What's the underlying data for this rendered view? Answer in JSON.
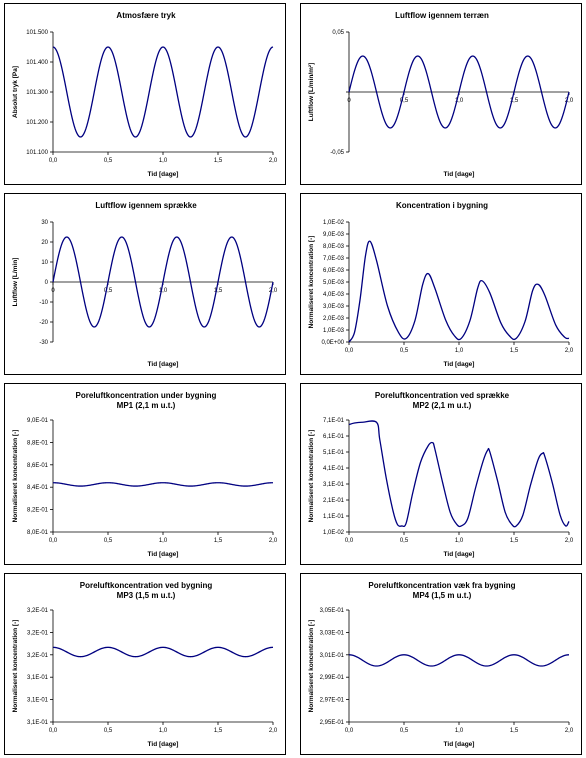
{
  "colors": {
    "series": "#000080",
    "axis": "#000000",
    "background": "#ffffff"
  },
  "chart_data": [
    {
      "type": "line",
      "title": "Atmosfære tryk",
      "subtitle": "",
      "xlabel": "Tid [dage]",
      "ylabel": "Absolut tryk [Pa]",
      "xlim": [
        0,
        2
      ],
      "ylim": [
        101100,
        101500
      ],
      "xticks": [
        "0,0",
        "0,5",
        "1,0",
        "1,5",
        "2,0"
      ],
      "yticks": [
        "101.100",
        "101.200",
        "101.300",
        "101.400",
        "101.500"
      ],
      "x_at": "bottom",
      "series": [
        {
          "shape": "sine",
          "baseline": 101300,
          "amplitude": 150,
          "period": 0.5,
          "phase": 0
        }
      ]
    },
    {
      "type": "line",
      "title": "Luftflow igennem terræn",
      "subtitle": "",
      "xlabel": "Tid [dage]",
      "ylabel": "Luftflow [L/min/m²]",
      "xlim": [
        0,
        2
      ],
      "ylim": [
        -0.05,
        0.05
      ],
      "xticks": [
        "0",
        "0,5",
        "1,0",
        "1,5",
        "2,0"
      ],
      "yticks": [
        "-0,05",
        "",
        "0,05"
      ],
      "x_at": "zero",
      "series": [
        {
          "shape": "sine",
          "baseline": 0,
          "amplitude": 0.03,
          "period": 0.5,
          "phase": 0.125
        }
      ]
    },
    {
      "type": "line",
      "title": "Luftflow igennem sprække",
      "subtitle": "",
      "xlabel": "Tid [dage]",
      "ylabel": "Luftflow [L/min]",
      "xlim": [
        0,
        2
      ],
      "ylim": [
        -30,
        30
      ],
      "xticks": [
        "0",
        "0,5",
        "1,0",
        "1,5",
        "2,0"
      ],
      "yticks": [
        "-30",
        "-20",
        "-10",
        "0",
        "10",
        "20",
        "30"
      ],
      "x_at": "zero",
      "series": [
        {
          "shape": "sine",
          "baseline": 0,
          "amplitude": 22.5,
          "period": 0.5,
          "phase": 0.125
        }
      ]
    },
    {
      "type": "line",
      "title": "Koncentration i bygning",
      "subtitle": "",
      "xlabel": "Tid [dage]",
      "ylabel": "Normaliseret koncentration [-]",
      "xlim": [
        0,
        2
      ],
      "ylim": [
        0,
        0.01
      ],
      "xticks": [
        "0,0",
        "0,5",
        "1,0",
        "1,5",
        "2,0"
      ],
      "yticks": [
        "0,0E+00",
        "1,0E-03",
        "2,0E-03",
        "3,0E-03",
        "4,0E-03",
        "5,0E-03",
        "6,0E-03",
        "7,0E-03",
        "8,0E-03",
        "9,0E-03",
        "1,0E-02"
      ],
      "x_at": "bottom",
      "series": [
        {
          "shape": "points",
          "x": [
            0.0,
            0.05,
            0.1,
            0.15,
            0.19,
            0.25,
            0.35,
            0.45,
            0.52,
            0.6,
            0.67,
            0.72,
            0.78,
            0.88,
            0.96,
            1.02,
            1.1,
            1.17,
            1.21,
            1.28,
            1.38,
            1.46,
            1.52,
            1.6,
            1.67,
            1.72,
            1.78,
            1.88,
            1.96,
            2.0
          ],
          "y": [
            0.0,
            0.0008,
            0.0035,
            0.0072,
            0.0084,
            0.0068,
            0.003,
            0.0008,
            0.0003,
            0.0018,
            0.0048,
            0.0057,
            0.0045,
            0.0018,
            0.0005,
            0.0003,
            0.0018,
            0.0045,
            0.0051,
            0.0041,
            0.0016,
            0.0005,
            0.0003,
            0.0017,
            0.0043,
            0.0048,
            0.0039,
            0.0014,
            0.0004,
            0.0003
          ]
        }
      ]
    },
    {
      "type": "line",
      "title": "Poreluftkoncentration under bygning",
      "subtitle": "MP1 (2,1 m u.t.)",
      "xlabel": "Tid [dage]",
      "ylabel": "Normaliseret koncentration [-]",
      "xlim": [
        0,
        2
      ],
      "ylim": [
        0.8,
        0.9
      ],
      "xticks": [
        "0,0",
        "0,5",
        "1,0",
        "1,5",
        "2,0"
      ],
      "yticks": [
        "8,0E-01",
        "8,2E-01",
        "8,4E-01",
        "8,6E-01",
        "8,8E-01",
        "9,0E-01"
      ],
      "x_at": "bottom",
      "series": [
        {
          "shape": "sine",
          "baseline": 0.8425,
          "amplitude": 0.0015,
          "period": 0.5,
          "phase": 0.0
        }
      ]
    },
    {
      "type": "line",
      "title": "Poreluftkoncentration ved sprække",
      "subtitle": "MP2 (2,1 m u.t.)",
      "xlabel": "Tid [dage]",
      "ylabel": "Normaliseret koncentration [-]",
      "xlim": [
        0,
        2
      ],
      "ylim": [
        0.01,
        0.75
      ],
      "xticks": [
        "0,0",
        "0,5",
        "1,0",
        "1,5",
        "2,0"
      ],
      "yticks": [
        "1,0E-02",
        "1,1E-01",
        "2,1E-01",
        "3,1E-01",
        "4,1E-01",
        "5,1E-01",
        "6,1E-01",
        "7,1E-01"
      ],
      "x_at": "bottom",
      "series": [
        {
          "shape": "points",
          "x": [
            0.0,
            0.05,
            0.12,
            0.25,
            0.28,
            0.34,
            0.4,
            0.44,
            0.48,
            0.52,
            0.58,
            0.65,
            0.72,
            0.76,
            0.78,
            0.85,
            0.92,
            0.98,
            1.02,
            1.08,
            1.15,
            1.22,
            1.26,
            1.28,
            1.35,
            1.42,
            1.48,
            1.52,
            1.58,
            1.65,
            1.72,
            1.76,
            1.78,
            1.85,
            1.92,
            1.97,
            2.0
          ],
          "y": [
            0.72,
            0.73,
            0.735,
            0.735,
            0.62,
            0.36,
            0.15,
            0.06,
            0.05,
            0.07,
            0.27,
            0.47,
            0.58,
            0.6,
            0.56,
            0.34,
            0.14,
            0.06,
            0.05,
            0.1,
            0.3,
            0.48,
            0.55,
            0.54,
            0.35,
            0.14,
            0.06,
            0.05,
            0.12,
            0.32,
            0.49,
            0.53,
            0.51,
            0.33,
            0.12,
            0.05,
            0.08
          ]
        }
      ]
    },
    {
      "type": "line",
      "title": "Poreluftkoncentration ved bygning",
      "subtitle": "MP3 (1,5 m u.t.)",
      "xlabel": "Tid [dage]",
      "ylabel": "Normaliseret koncentration [-]",
      "xlim": [
        0,
        2
      ],
      "ylim": [
        0.31,
        0.322
      ],
      "xticks": [
        "0,0",
        "0,5",
        "1,0",
        "1,5",
        "2,0"
      ],
      "yticks": [
        "3,1E-01",
        "3,1E-01",
        "3,1E-01",
        "3,2E-01",
        "3,2E-01",
        "3,2E-01"
      ],
      "x_at": "bottom",
      "series": [
        {
          "shape": "sine",
          "baseline": 0.3175,
          "amplitude": 0.0005,
          "period": 0.5,
          "phase": 0.0
        }
      ]
    },
    {
      "type": "line",
      "title": "Poreluftkoncentration væk fra bygning",
      "subtitle": "MP4 (1,5 m u.t.)",
      "xlabel": "Tid [dage]",
      "ylabel": "Normaliseret koncentration [-]",
      "xlim": [
        0,
        2
      ],
      "ylim": [
        0.295,
        0.305
      ],
      "xticks": [
        "0,0",
        "0,5",
        "1,0",
        "1,5",
        "2,0"
      ],
      "yticks": [
        "2,95E-01",
        "2,97E-01",
        "2,99E-01",
        "3,01E-01",
        "3,03E-01",
        "3,05E-01"
      ],
      "x_at": "bottom",
      "series": [
        {
          "shape": "sine",
          "baseline": 0.3005,
          "amplitude": 0.0005,
          "period": 0.5,
          "phase": 0.0
        }
      ]
    }
  ]
}
